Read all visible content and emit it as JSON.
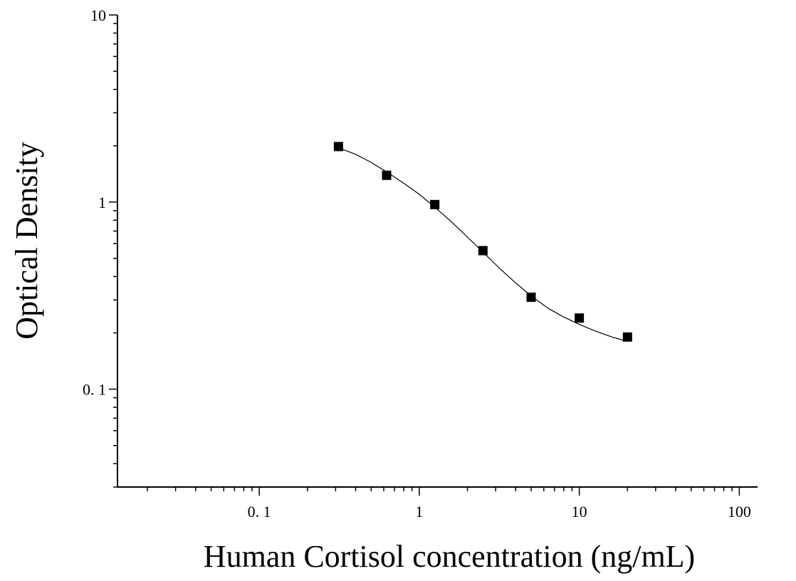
{
  "chart_data": {
    "type": "scatter",
    "title": "",
    "xlabel": "Human Cortisol concentration (ng/mL)",
    "ylabel": "Optical Density",
    "xscale": "log",
    "yscale": "log",
    "xlim": [
      0.013,
      130
    ],
    "ylim": [
      0.03,
      10
    ],
    "grid": false,
    "legend": "none",
    "x_ticks": [
      {
        "value": 0.1,
        "label": "0. 1"
      },
      {
        "value": 1,
        "label": "1"
      },
      {
        "value": 10,
        "label": "10"
      },
      {
        "value": 100,
        "label": "100"
      }
    ],
    "y_ticks": [
      {
        "value": 0.1,
        "label": "0. 1"
      },
      {
        "value": 1,
        "label": "1"
      },
      {
        "value": 10,
        "label": "10"
      }
    ],
    "series": [
      {
        "type": "scatter",
        "marker": "square",
        "color": "#000000",
        "x": [
          0.3125,
          0.625,
          1.25,
          2.5,
          5,
          10,
          20
        ],
        "y": [
          1.98,
          1.39,
          0.97,
          0.55,
          0.31,
          0.24,
          0.19
        ]
      },
      {
        "type": "line",
        "color": "#000000",
        "x": [
          0.3125,
          0.4,
          0.5,
          0.625,
          0.8,
          1.0,
          1.25,
          1.6,
          2.0,
          2.5,
          3.2,
          4.0,
          5.0,
          6.4,
          8.0,
          10.0,
          12.5,
          16.0,
          20.0
        ],
        "y": [
          1.95,
          1.8,
          1.63,
          1.45,
          1.26,
          1.1,
          0.94,
          0.78,
          0.65,
          0.54,
          0.44,
          0.37,
          0.315,
          0.27,
          0.243,
          0.222,
          0.205,
          0.19,
          0.18
        ]
      }
    ]
  }
}
